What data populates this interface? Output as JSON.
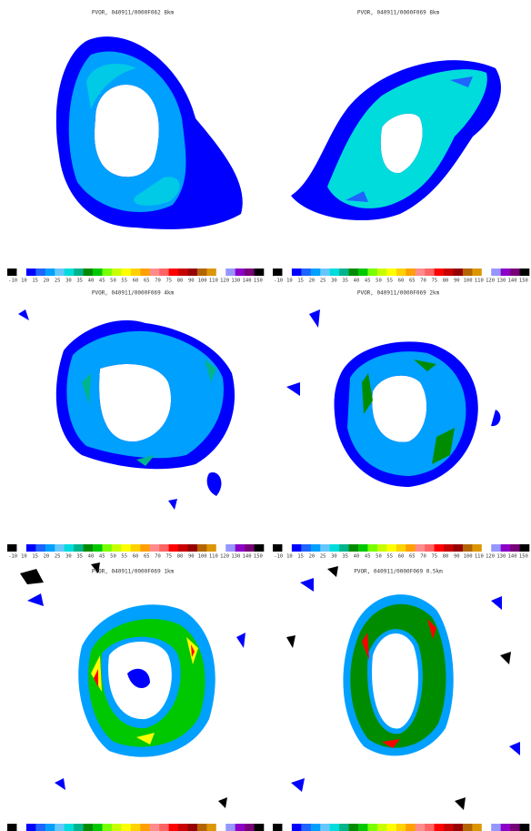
{
  "panels": [
    {
      "title": "PVOR, 040911/0000F062 8km"
    },
    {
      "title": "PVOR, 040911/0000F069 8km"
    },
    {
      "title": "PVOR, 040911/0000F069 4km"
    },
    {
      "title": "PVOR, 040911/0000F069 2km"
    },
    {
      "title": "PVOR, 040911/0000F069 1km"
    },
    {
      "title": "PVOR, 040911/0000F069 0.5km"
    }
  ],
  "colorbar": {
    "labels": [
      "-10",
      "10",
      "15",
      "20",
      "25",
      "30",
      "35",
      "40",
      "45",
      "50",
      "55",
      "60",
      "65",
      "70",
      "75",
      "80",
      "90",
      "100",
      "110",
      "120",
      "130",
      "140",
      "150"
    ],
    "colors": [
      "#000000",
      "#ffffff",
      "#0000ff",
      "#1e64ff",
      "#00a0ff",
      "#64c8ff",
      "#00dcdc",
      "#00b48c",
      "#008c00",
      "#00c800",
      "#78ff00",
      "#c8ff00",
      "#ffff00",
      "#ffd200",
      "#ffa000",
      "#ff8c8c",
      "#ff6464",
      "#ff0000",
      "#c80000",
      "#960000",
      "#b46400",
      "#dc9600",
      "#ffffff",
      "#9696ff",
      "#8c00c8",
      "#780078",
      "#000000"
    ]
  }
}
